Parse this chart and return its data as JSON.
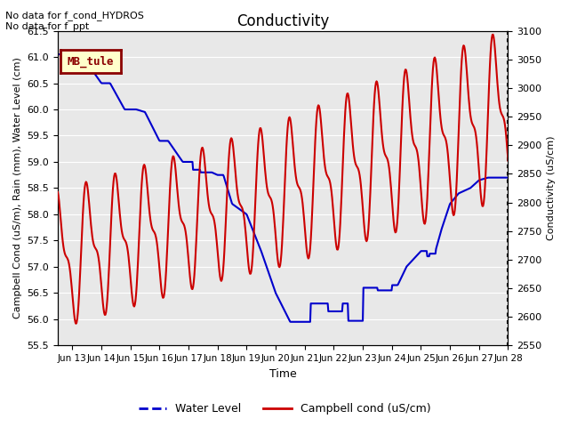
{
  "title": "Conductivity",
  "xlabel": "Time",
  "ylabel_left": "Campbell Cond (uS/m), Rain (mm), Water Level (cm)",
  "ylabel_right": "Conductivity (uS/cm)",
  "annotations": [
    "No data for f_cond_HYDROS",
    "No data for f_ppt"
  ],
  "legend_label": "MB_tule",
  "legend_box_color": "#ffffcc",
  "legend_box_edge": "#8b0000",
  "ylim_left": [
    55.5,
    61.5
  ],
  "ylim_right": [
    2550,
    3100
  ],
  "yticks_left": [
    55.5,
    56.0,
    56.5,
    57.0,
    57.5,
    58.0,
    58.5,
    59.0,
    59.5,
    60.0,
    60.5,
    61.0,
    61.5
  ],
  "yticks_right": [
    2550,
    2600,
    2650,
    2700,
    2750,
    2800,
    2850,
    2900,
    2950,
    3000,
    3050,
    3100
  ],
  "bg_color": "#e8e8e8",
  "grid_color": "#ffffff",
  "water_level_color": "#0000cc",
  "cond_color": "#cc0000",
  "line_width": 1.5,
  "xtick_labels": [
    "Jun 13",
    "Jun 14",
    "Jun 15",
    "Jun 16",
    "Jun 17",
    "Jun 18",
    "Jun 19",
    "Jun 20",
    "Jun 21",
    "Jun 22",
    "Jun 23",
    "Jun 24",
    "Jun 25",
    "Jun 26",
    "Jun 27",
    "Jun 28"
  ],
  "num_points": 720,
  "xmin": 12.5,
  "xmax": 28.0
}
